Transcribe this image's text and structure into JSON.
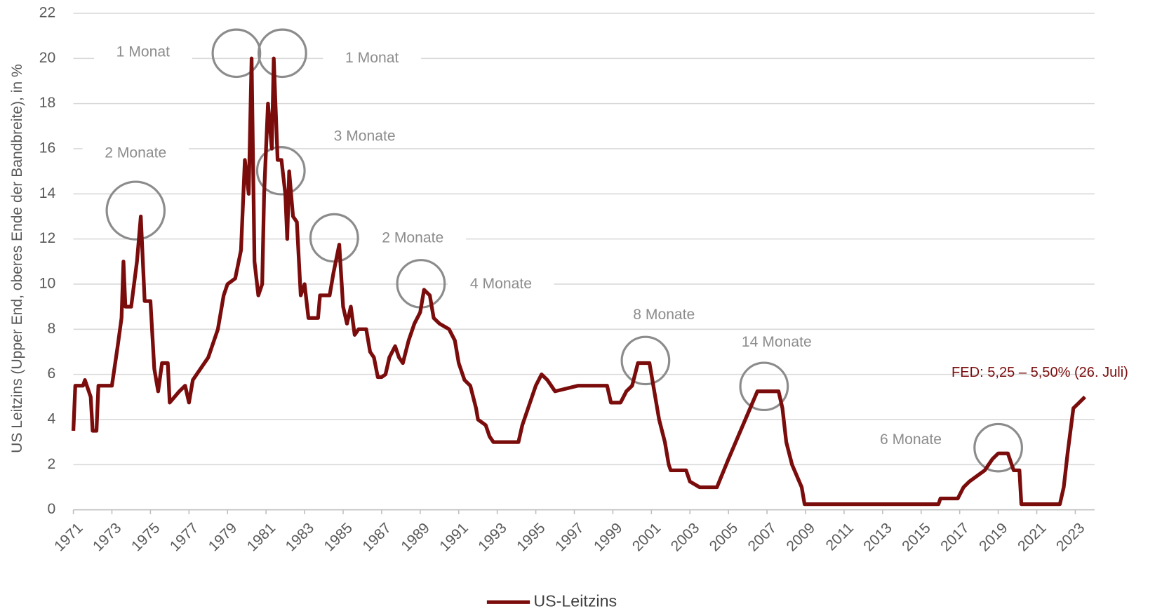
{
  "chart_data": {
    "type": "line",
    "ylabel": "US Leitzins (Upper End, oberes Ende der Bandbreite), in %",
    "x": [
      1971.0,
      1971.1,
      1971.5,
      1971.6,
      1971.9,
      1972.0,
      1972.2,
      1972.3,
      1973.0,
      1973.3,
      1973.5,
      1973.6,
      1973.7,
      1974.0,
      1974.3,
      1974.5,
      1974.7,
      1975.0,
      1975.2,
      1975.4,
      1975.6,
      1975.9,
      1976.0,
      1976.5,
      1976.8,
      1977.0,
      1977.2,
      1977.8,
      1978.0,
      1978.5,
      1978.8,
      1979.0,
      1979.4,
      1979.7,
      1979.9,
      1980.1,
      1980.25,
      1980.4,
      1980.6,
      1980.8,
      1980.9,
      1981.1,
      1981.3,
      1981.4,
      1981.6,
      1981.8,
      1982.0,
      1982.1,
      1982.2,
      1982.4,
      1982.6,
      1982.8,
      1983.0,
      1983.2,
      1983.7,
      1983.8,
      1984.3,
      1984.5,
      1984.8,
      1985.0,
      1985.2,
      1985.4,
      1985.6,
      1985.8,
      1986.2,
      1986.4,
      1986.6,
      1986.8,
      1987.0,
      1987.2,
      1987.4,
      1987.7,
      1987.9,
      1988.1,
      1988.4,
      1988.7,
      1989.0,
      1989.2,
      1989.5,
      1989.7,
      1990.0,
      1990.5,
      1990.8,
      1991.0,
      1991.3,
      1991.6,
      1991.9,
      1992.0,
      1992.4,
      1992.6,
      1992.8,
      1994.1,
      1994.3,
      1994.5,
      1994.8,
      1995.0,
      1995.3,
      1995.6,
      1996.0,
      1997.2,
      1998.7,
      1998.9,
      1999.4,
      1999.7,
      2000.0,
      2000.3,
      2000.9,
      2001.1,
      2001.4,
      2001.7,
      2001.9,
      2002.0,
      2002.8,
      2003.0,
      2003.5,
      2004.4,
      2005.0,
      2005.5,
      2006.0,
      2006.5,
      2007.6,
      2007.8,
      2008.0,
      2008.3,
      2008.8,
      2008.95,
      2015.9,
      2016.0,
      2016.9,
      2017.2,
      2017.5,
      2017.9,
      2018.3,
      2018.7,
      2019.0,
      2019.5,
      2019.8,
      2020.1,
      2020.2,
      2022.2,
      2022.4,
      2022.6,
      2022.9,
      2023.2,
      2023.5
    ],
    "series": [
      {
        "name": "US-Leitzins",
        "color": "#7b0c0c",
        "values": [
          3.5,
          5.5,
          5.5,
          5.75,
          5,
          3.5,
          3.5,
          5.5,
          5.5,
          7.25,
          8.5,
          11,
          9,
          9,
          11,
          13,
          9.25,
          9.25,
          6.25,
          5.25,
          6.5,
          6.5,
          4.75,
          5.25,
          5.5,
          4.75,
          5.75,
          6.5,
          6.75,
          8,
          9.5,
          10,
          10.25,
          11.5,
          15.5,
          14,
          20,
          11,
          9.5,
          10,
          14,
          18,
          16,
          20,
          15.5,
          15.5,
          14,
          12,
          15,
          13,
          12.75,
          9.5,
          10,
          8.5,
          8.5,
          9.5,
          9.5,
          10.5,
          11.75,
          9,
          8.25,
          9,
          7.75,
          8,
          8,
          7,
          6.75,
          5.88,
          5.88,
          6,
          6.75,
          7.25,
          6.75,
          6.5,
          7.5,
          8.25,
          8.75,
          9.75,
          9.5,
          8.5,
          8.25,
          8,
          7.5,
          6.5,
          5.75,
          5.5,
          4.5,
          4,
          3.75,
          3.25,
          3,
          3,
          3.75,
          4.25,
          5,
          5.5,
          6,
          5.75,
          5.25,
          5.5,
          5.5,
          4.75,
          4.75,
          5.25,
          5.5,
          6.5,
          6.5,
          5.5,
          4,
          3,
          2,
          1.75,
          1.75,
          1.25,
          1,
          1,
          2.25,
          3.25,
          4.25,
          5.25,
          5.25,
          4.5,
          3,
          2,
          1,
          0.25,
          0.25,
          0.5,
          0.5,
          1,
          1.25,
          1.5,
          1.75,
          2.25,
          2.5,
          2.5,
          1.75,
          1.75,
          0.25,
          0.25,
          1,
          2.5,
          4.5,
          4.75,
          5.0
        ]
      }
    ],
    "xlim": [
      1971,
      2024
    ],
    "xticks": [
      1971,
      1973,
      1975,
      1977,
      1979,
      1981,
      1983,
      1985,
      1987,
      1989,
      1991,
      1993,
      1995,
      1997,
      1999,
      2001,
      2003,
      2005,
      2007,
      2009,
      2011,
      2013,
      2015,
      2017,
      2019,
      2021,
      2023
    ],
    "ylim": [
      0,
      22
    ],
    "yticks": [
      0,
      2,
      4,
      6,
      8,
      10,
      12,
      14,
      16,
      18,
      20,
      22
    ],
    "grid": true,
    "legend": "bottom",
    "annotations": [
      "1 Monat",
      "1 Monat",
      "3 Monate",
      "2 Monate",
      "2 Monate",
      "4 Monate",
      "8 Monate",
      "14 Monate",
      "6 Monate",
      "FED: 5,25 – 5,50% (26. Juli)"
    ]
  }
}
